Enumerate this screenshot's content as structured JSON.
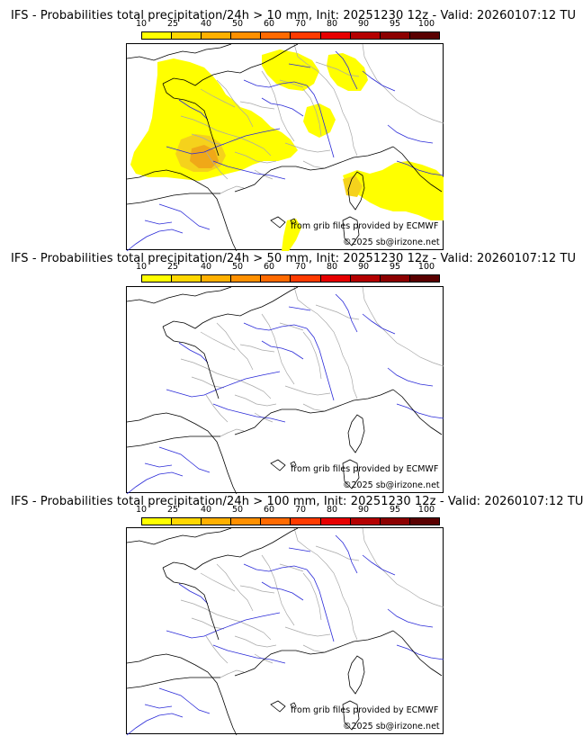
{
  "panels": [
    {
      "title": "IFS - Probabilities total precipitation/24h > 10 mm, Init: 20251230 12z - Valid: 20260107:12 TU",
      "threshold": "> 10 mm",
      "has_precip": true
    },
    {
      "title": "IFS - Probabilities total precipitation/24h > 50 mm, Init: 20251230 12z - Valid: 20260107:12 TU",
      "threshold": "> 50 mm",
      "has_precip": false
    },
    {
      "title": "IFS - Probabilities total precipitation/24h > 100 mm, Init: 20251230 12z - Valid: 20260107:12 TU",
      "threshold": "> 100 mm",
      "has_precip": false
    }
  ],
  "legend": {
    "labels": [
      "10",
      "25",
      "40",
      "50",
      "60",
      "70",
      "80",
      "90",
      "95",
      "100"
    ],
    "colors": [
      "#ffff00",
      "#ffd700",
      "#ffb000",
      "#ff9000",
      "#ff6a00",
      "#ff3b00",
      "#e60000",
      "#b40000",
      "#8c0000",
      "#5a0000"
    ]
  },
  "credits": {
    "source": "from grib files provided by ECMWF",
    "copyright": "©2025 sb@irizone.net"
  },
  "map_colors": {
    "coast": "#000000",
    "borders": "#a8a8a8",
    "rivers": "#2a2ad8",
    "precip_light": "#ffff00",
    "precip_mid": "#f5d21c",
    "precip_high": "#f0a818"
  }
}
